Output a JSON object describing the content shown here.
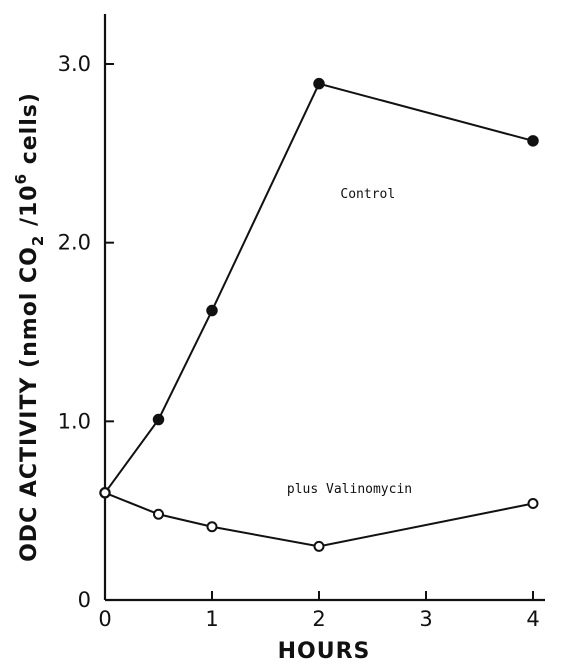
{
  "chart_data": {
    "type": "line",
    "title": "",
    "xlabel": "HOURS",
    "ylabel": "ODC ACTIVITY (nmol CO2 /10^6 cells)",
    "ylabel_parts": {
      "pre": "ODC ACTIVITY (nmol CO",
      "sub": "2",
      "mid": " /10",
      "sup": "6",
      "post": " cells)"
    },
    "xlim": [
      0,
      4
    ],
    "ylim": [
      0,
      3.0
    ],
    "xticks": [
      0,
      1,
      2,
      3,
      4
    ],
    "xtick_labels": [
      "0",
      "1",
      "2",
      "3",
      "4"
    ],
    "yticks": [
      0,
      1.0,
      2.0,
      3.0
    ],
    "ytick_labels": [
      "0",
      "1.0",
      "2.0",
      "3.0"
    ],
    "grid": false,
    "series": [
      {
        "name": "Control",
        "marker": "filled-circle",
        "x": [
          0,
          0.5,
          1,
          2,
          4
        ],
        "y": [
          0.6,
          1.01,
          1.62,
          2.89,
          2.57
        ]
      },
      {
        "name": "plus Valinomycin",
        "marker": "open-circle",
        "x": [
          0,
          0.5,
          1,
          2,
          4
        ],
        "y": [
          0.6,
          0.48,
          0.41,
          0.3,
          0.54
        ]
      }
    ],
    "annotations": [
      {
        "text": "Control",
        "x": 2.2,
        "y": 2.25
      },
      {
        "text": "plus Valinomycin",
        "x": 1.7,
        "y": 0.6
      }
    ]
  }
}
